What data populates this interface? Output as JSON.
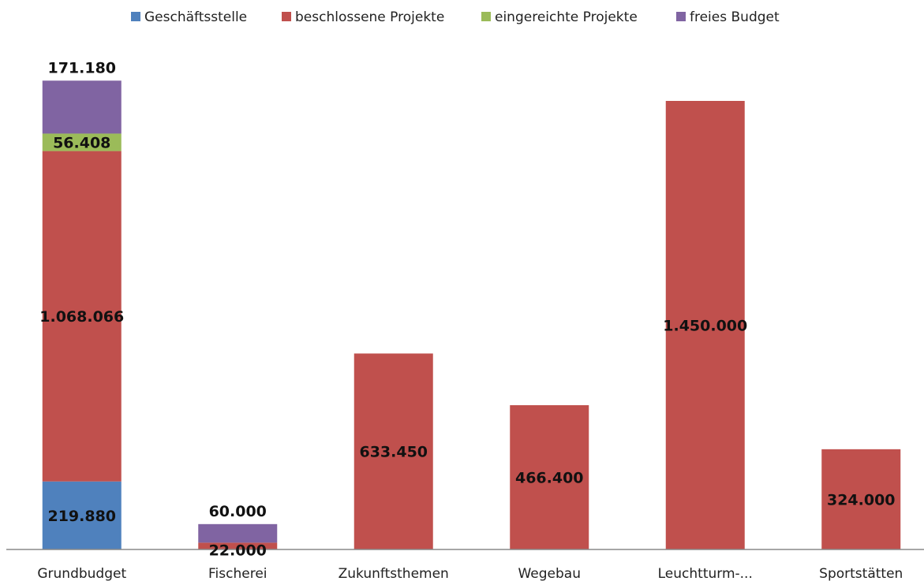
{
  "chart_data": {
    "type": "bar",
    "stacked": true,
    "categories": [
      "Grundbudget",
      "Fischerei",
      "Zukunftsthemen",
      "Wegebau",
      "Leuchtturm-...",
      "Sportstätten"
    ],
    "series": [
      {
        "name": "Geschäftsstelle",
        "color": "#4F81BD",
        "values": [
          219880,
          0,
          0,
          0,
          0,
          0
        ]
      },
      {
        "name": "beschlossene Projekte",
        "color": "#C0504D",
        "values": [
          1068066,
          22000,
          633450,
          466400,
          1450000,
          324000
        ]
      },
      {
        "name": "eingereichte Projekte",
        "color": "#9BBB59",
        "values": [
          56408,
          0,
          0,
          0,
          0,
          0
        ]
      },
      {
        "name": "freies Budget",
        "color": "#8064A2",
        "values": [
          171180,
          60000,
          0,
          0,
          0,
          0
        ]
      }
    ],
    "data_labels": [
      [
        "219.880",
        "",
        "",
        "",
        "",
        ""
      ],
      [
        "1.068.066",
        "22.000",
        "633.450",
        "466.400",
        "1.450.000",
        "324.000"
      ],
      [
        "56.408",
        "",
        "",
        "",
        "",
        ""
      ],
      [
        "171.180",
        "60.000",
        "",
        "",
        "",
        ""
      ]
    ],
    "ylim": [
      0,
      1550000
    ],
    "legend_position": "top",
    "grid": false,
    "title": "",
    "xlabel": "",
    "ylabel": ""
  }
}
